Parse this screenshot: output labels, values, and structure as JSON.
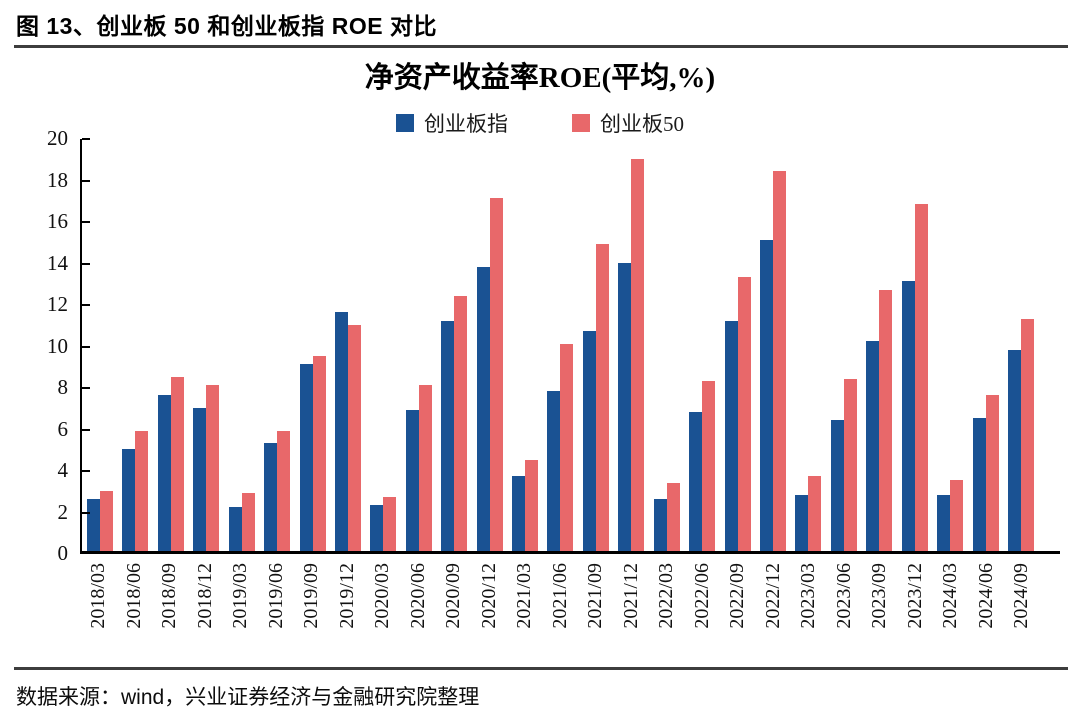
{
  "figure": {
    "caption": "图 13、创业板 50 和创业板指 ROE 对比"
  },
  "chart_data": {
    "type": "bar",
    "title": "净资产收益率ROE(平均,%)",
    "categories": [
      "2018/03",
      "2018/06",
      "2018/09",
      "2018/12",
      "2019/03",
      "2019/06",
      "2019/09",
      "2019/12",
      "2020/03",
      "2020/06",
      "2020/09",
      "2020/12",
      "2021/03",
      "2021/06",
      "2021/09",
      "2021/12",
      "2022/03",
      "2022/06",
      "2022/09",
      "2022/12",
      "2023/03",
      "2023/06",
      "2023/09",
      "2023/12",
      "2024/03",
      "2024/06",
      "2024/09"
    ],
    "series": [
      {
        "name": "创业板指",
        "color": "#1A5293",
        "values": [
          2.5,
          4.9,
          7.5,
          6.9,
          2.1,
          5.2,
          9.0,
          11.5,
          2.2,
          6.8,
          11.1,
          13.7,
          3.6,
          7.7,
          10.6,
          13.9,
          2.5,
          6.7,
          11.1,
          15.0,
          2.7,
          6.3,
          10.1,
          13.0,
          2.7,
          6.4,
          9.7
        ]
      },
      {
        "name": "创业板50",
        "color": "#E8686A",
        "values": [
          2.9,
          5.8,
          8.4,
          8.0,
          2.8,
          5.8,
          9.4,
          10.9,
          2.6,
          8.0,
          12.3,
          17.0,
          4.4,
          10.0,
          14.8,
          18.9,
          3.3,
          8.2,
          13.2,
          18.3,
          3.6,
          8.3,
          12.6,
          16.7,
          3.4,
          7.5,
          11.2
        ]
      }
    ],
    "ylim": [
      0,
      20
    ],
    "ytick_step": 2,
    "grid": false,
    "legend_position": "top",
    "xlabel": "",
    "ylabel": ""
  },
  "footer": {
    "source": "数据来源：wind，兴业证券经济与金融研究院整理"
  }
}
